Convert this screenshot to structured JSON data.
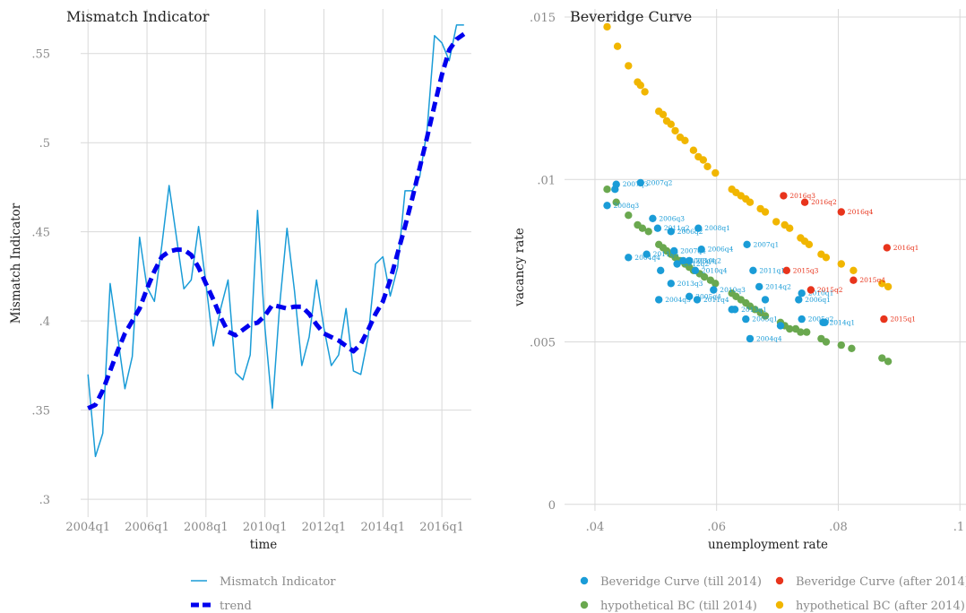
{
  "chart_data": [
    {
      "type": "line",
      "title": "Mismatch Indicator",
      "xlabel": "time",
      "ylabel": "Mismatch Indicator",
      "xlim": [
        2004.0,
        2017.25
      ],
      "ylim": [
        0.29,
        0.575
      ],
      "x_ticks": [
        {
          "value": 2004.25,
          "label": "2004q1"
        },
        {
          "value": 2006.25,
          "label": "2006q1"
        },
        {
          "value": 2008.25,
          "label": "2008q1"
        },
        {
          "value": 2010.25,
          "label": "2010q1"
        },
        {
          "value": 2012.25,
          "label": "2012q1"
        },
        {
          "value": 2014.25,
          "label": "2014q1"
        },
        {
          "value": 2016.25,
          "label": "2016q1"
        }
      ],
      "y_ticks": [
        {
          "value": 0.3,
          "label": ".3"
        },
        {
          "value": 0.35,
          "label": ".35"
        },
        {
          "value": 0.4,
          "label": ".4"
        },
        {
          "value": 0.45,
          "label": ".45"
        },
        {
          "value": 0.5,
          "label": ".5"
        },
        {
          "value": 0.55,
          "label": ".55"
        }
      ],
      "grid": true,
      "legend_position": "bottom",
      "x": [
        2004.25,
        2004.5,
        2004.75,
        2005.0,
        2005.25,
        2005.5,
        2005.75,
        2006.0,
        2006.25,
        2006.5,
        2006.75,
        2007.0,
        2007.25,
        2007.5,
        2007.75,
        2008.0,
        2008.25,
        2008.5,
        2008.75,
        2009.0,
        2009.25,
        2009.5,
        2009.75,
        2010.0,
        2010.25,
        2010.5,
        2010.75,
        2011.0,
        2011.25,
        2011.5,
        2011.75,
        2012.0,
        2012.25,
        2012.5,
        2012.75,
        2013.0,
        2013.25,
        2013.5,
        2013.75,
        2014.0,
        2014.25,
        2014.5,
        2014.75,
        2015.0,
        2015.25,
        2015.5,
        2015.75,
        2016.0,
        2016.25,
        2016.5,
        2016.75,
        2017.0
      ],
      "series": [
        {
          "name": "Mismatch Indicator",
          "color": "#1a9cd7",
          "style": "solid",
          "values": [
            0.37,
            0.324,
            0.337,
            0.421,
            0.392,
            0.362,
            0.38,
            0.447,
            0.419,
            0.411,
            0.442,
            0.476,
            0.447,
            0.418,
            0.423,
            0.453,
            0.421,
            0.386,
            0.407,
            0.423,
            0.371,
            0.367,
            0.381,
            0.462,
            0.396,
            0.351,
            0.409,
            0.452,
            0.417,
            0.375,
            0.391,
            0.423,
            0.396,
            0.375,
            0.381,
            0.407,
            0.372,
            0.37,
            0.391,
            0.432,
            0.436,
            0.414,
            0.43,
            0.473,
            0.473,
            0.481,
            0.507,
            0.56,
            0.556,
            0.546,
            0.566,
            0.566
          ]
        },
        {
          "name": "trend",
          "color": "#0000ee",
          "style": "dashed",
          "values": [
            0.351,
            0.353,
            0.361,
            0.372,
            0.383,
            0.393,
            0.4,
            0.407,
            0.418,
            0.428,
            0.436,
            0.439,
            0.44,
            0.44,
            0.437,
            0.43,
            0.421,
            0.412,
            0.402,
            0.394,
            0.392,
            0.395,
            0.398,
            0.399,
            0.403,
            0.409,
            0.408,
            0.407,
            0.408,
            0.408,
            0.404,
            0.398,
            0.393,
            0.391,
            0.389,
            0.386,
            0.383,
            0.387,
            0.395,
            0.404,
            0.411,
            0.423,
            0.438,
            0.453,
            0.469,
            0.486,
            0.503,
            0.521,
            0.538,
            0.552,
            0.558,
            0.561
          ]
        }
      ]
    },
    {
      "type": "scatter",
      "title": "Beveridge Curve",
      "xlabel": "unemployment rate",
      "ylabel": "vacancy rate",
      "xlim": [
        0.035,
        0.101
      ],
      "ylim": [
        -0.0002,
        0.01525
      ],
      "x_ticks": [
        {
          "value": 0.04,
          "label": ".04"
        },
        {
          "value": 0.06,
          "label": ".06"
        },
        {
          "value": 0.08,
          "label": ".08"
        },
        {
          "value": 0.1,
          "label": ".1"
        }
      ],
      "y_ticks": [
        {
          "value": 0,
          "label": "0"
        },
        {
          "value": 0.005,
          "label": ".005"
        },
        {
          "value": 0.01,
          "label": ".01"
        },
        {
          "value": 0.015,
          "label": ".015"
        }
      ],
      "grid": true,
      "legend_position": "bottom",
      "series": [
        {
          "name": "Beveridge Curve (till 2014)",
          "color": "#1a9cd7",
          "points": [
            {
              "x": 0.0435,
              "y": 0.00985,
              "label": "2007q3"
            },
            {
              "x": 0.0475,
              "y": 0.0099,
              "label": "2007q2"
            },
            {
              "x": 0.0433,
              "y": 0.0097,
              "label": ""
            },
            {
              "x": 0.042,
              "y": 0.0092,
              "label": "2008q3"
            },
            {
              "x": 0.0495,
              "y": 0.0088,
              "label": "2006q3"
            },
            {
              "x": 0.0503,
              "y": 0.0085,
              "label": "2011q2"
            },
            {
              "x": 0.0525,
              "y": 0.0084,
              "label": "2006q2"
            },
            {
              "x": 0.057,
              "y": 0.0085,
              "label": "2008q1"
            },
            {
              "x": 0.065,
              "y": 0.008,
              "label": "2007q1"
            },
            {
              "x": 0.053,
              "y": 0.0078,
              "label": "2007q4"
            },
            {
              "x": 0.0575,
              "y": 0.00785,
              "label": "2006q4"
            },
            {
              "x": 0.0485,
              "y": 0.0077,
              "label": "2011q3"
            },
            {
              "x": 0.0455,
              "y": 0.0076,
              "label": "2004q4"
            },
            {
              "x": 0.0555,
              "y": 0.0075,
              "label": "2010q2"
            },
            {
              "x": 0.0545,
              "y": 0.0075,
              "label": "2008q4"
            },
            {
              "x": 0.0535,
              "y": 0.0074,
              "label": "2012q2"
            },
            {
              "x": 0.0565,
              "y": 0.0072,
              "label": "2010q4"
            },
            {
              "x": 0.066,
              "y": 0.0072,
              "label": "2011q1"
            },
            {
              "x": 0.0508,
              "y": 0.0072,
              "label": ""
            },
            {
              "x": 0.0525,
              "y": 0.0068,
              "label": "2013q3"
            },
            {
              "x": 0.0595,
              "y": 0.0066,
              "label": "2010q3"
            },
            {
              "x": 0.067,
              "y": 0.0067,
              "label": "2014q2"
            },
            {
              "x": 0.074,
              "y": 0.0065,
              "label": "2010q1"
            },
            {
              "x": 0.0505,
              "y": 0.0063,
              "label": "2004q3"
            },
            {
              "x": 0.0555,
              "y": 0.0064,
              "label": "2005q4"
            },
            {
              "x": 0.0568,
              "y": 0.0063,
              "label": "2011q4"
            },
            {
              "x": 0.063,
              "y": 0.006,
              "label": "2013q1"
            },
            {
              "x": 0.0625,
              "y": 0.006,
              "label": ""
            },
            {
              "x": 0.068,
              "y": 0.0063,
              "label": ""
            },
            {
              "x": 0.0735,
              "y": 0.0063,
              "label": "2006q1"
            },
            {
              "x": 0.0648,
              "y": 0.0057,
              "label": "2005q1"
            },
            {
              "x": 0.074,
              "y": 0.0057,
              "label": "2005q2"
            },
            {
              "x": 0.0775,
              "y": 0.0056,
              "label": "2014q1"
            },
            {
              "x": 0.0778,
              "y": 0.0056,
              "label": ""
            },
            {
              "x": 0.0705,
              "y": 0.0055,
              "label": ""
            },
            {
              "x": 0.0655,
              "y": 0.0051,
              "label": "2004q4"
            }
          ]
        },
        {
          "name": "Beveridge Curve (after 2014)",
          "color": "#e8341c",
          "points": [
            {
              "x": 0.071,
              "y": 0.0095,
              "label": "2016q3"
            },
            {
              "x": 0.0745,
              "y": 0.0093,
              "label": "2016q2"
            },
            {
              "x": 0.0805,
              "y": 0.009,
              "label": "2016q4"
            },
            {
              "x": 0.088,
              "y": 0.0079,
              "label": "2016q1"
            },
            {
              "x": 0.0715,
              "y": 0.0072,
              "label": "2015q3"
            },
            {
              "x": 0.0825,
              "y": 0.0069,
              "label": "2015q4"
            },
            {
              "x": 0.0755,
              "y": 0.0066,
              "label": "2015q2"
            },
            {
              "x": 0.0875,
              "y": 0.0057,
              "label": "2015q1"
            }
          ]
        },
        {
          "name": "hypothetical BC (till 2014)",
          "color": "#6aa84f",
          "points": [
            {
              "x": 0.042,
              "y": 0.0097
            },
            {
              "x": 0.0435,
              "y": 0.0093
            },
            {
              "x": 0.0455,
              "y": 0.0089
            },
            {
              "x": 0.047,
              "y": 0.0086
            },
            {
              "x": 0.0478,
              "y": 0.0085
            },
            {
              "x": 0.0488,
              "y": 0.0084
            },
            {
              "x": 0.0505,
              "y": 0.008
            },
            {
              "x": 0.0512,
              "y": 0.0079
            },
            {
              "x": 0.0518,
              "y": 0.0078
            },
            {
              "x": 0.0525,
              "y": 0.0077
            },
            {
              "x": 0.0532,
              "y": 0.0076
            },
            {
              "x": 0.054,
              "y": 0.0075
            },
            {
              "x": 0.0548,
              "y": 0.0074
            },
            {
              "x": 0.0555,
              "y": 0.0073
            },
            {
              "x": 0.0562,
              "y": 0.0072
            },
            {
              "x": 0.0572,
              "y": 0.0071
            },
            {
              "x": 0.058,
              "y": 0.007
            },
            {
              "x": 0.059,
              "y": 0.0069
            },
            {
              "x": 0.0598,
              "y": 0.0068
            },
            {
              "x": 0.0625,
              "y": 0.0065
            },
            {
              "x": 0.0632,
              "y": 0.0064
            },
            {
              "x": 0.064,
              "y": 0.0063
            },
            {
              "x": 0.0648,
              "y": 0.0062
            },
            {
              "x": 0.0655,
              "y": 0.0061
            },
            {
              "x": 0.0663,
              "y": 0.006
            },
            {
              "x": 0.0672,
              "y": 0.0059
            },
            {
              "x": 0.068,
              "y": 0.0058
            },
            {
              "x": 0.0705,
              "y": 0.0056
            },
            {
              "x": 0.0712,
              "y": 0.0055
            },
            {
              "x": 0.072,
              "y": 0.0054
            },
            {
              "x": 0.073,
              "y": 0.0054
            },
            {
              "x": 0.0738,
              "y": 0.0053
            },
            {
              "x": 0.0748,
              "y": 0.0053
            },
            {
              "x": 0.0772,
              "y": 0.0051
            },
            {
              "x": 0.078,
              "y": 0.005
            },
            {
              "x": 0.0805,
              "y": 0.0049
            },
            {
              "x": 0.0822,
              "y": 0.0048
            },
            {
              "x": 0.0872,
              "y": 0.0045
            },
            {
              "x": 0.0882,
              "y": 0.0044
            }
          ]
        },
        {
          "name": "hypothetical BC (after 2014)",
          "color": "#f1b600",
          "points": [
            {
              "x": 0.042,
              "y": 0.0147
            },
            {
              "x": 0.0437,
              "y": 0.0141
            },
            {
              "x": 0.0455,
              "y": 0.0135
            },
            {
              "x": 0.047,
              "y": 0.013
            },
            {
              "x": 0.0475,
              "y": 0.0129
            },
            {
              "x": 0.0482,
              "y": 0.0127
            },
            {
              "x": 0.0505,
              "y": 0.0121
            },
            {
              "x": 0.0512,
              "y": 0.012
            },
            {
              "x": 0.0518,
              "y": 0.0118
            },
            {
              "x": 0.0525,
              "y": 0.0117
            },
            {
              "x": 0.0532,
              "y": 0.0115
            },
            {
              "x": 0.054,
              "y": 0.0113
            },
            {
              "x": 0.0548,
              "y": 0.0112
            },
            {
              "x": 0.0562,
              "y": 0.0109
            },
            {
              "x": 0.057,
              "y": 0.0107
            },
            {
              "x": 0.0578,
              "y": 0.0106
            },
            {
              "x": 0.0585,
              "y": 0.0104
            },
            {
              "x": 0.0598,
              "y": 0.0102
            },
            {
              "x": 0.0625,
              "y": 0.0097
            },
            {
              "x": 0.0632,
              "y": 0.0096
            },
            {
              "x": 0.064,
              "y": 0.0095
            },
            {
              "x": 0.0648,
              "y": 0.0094
            },
            {
              "x": 0.0655,
              "y": 0.0093
            },
            {
              "x": 0.0672,
              "y": 0.0091
            },
            {
              "x": 0.068,
              "y": 0.009
            },
            {
              "x": 0.0698,
              "y": 0.0087
            },
            {
              "x": 0.0712,
              "y": 0.0086
            },
            {
              "x": 0.072,
              "y": 0.0085
            },
            {
              "x": 0.0738,
              "y": 0.0082
            },
            {
              "x": 0.0745,
              "y": 0.0081
            },
            {
              "x": 0.0752,
              "y": 0.008
            },
            {
              "x": 0.0772,
              "y": 0.0077
            },
            {
              "x": 0.078,
              "y": 0.0076
            },
            {
              "x": 0.0805,
              "y": 0.0074
            },
            {
              "x": 0.0825,
              "y": 0.0072
            },
            {
              "x": 0.0872,
              "y": 0.0068
            },
            {
              "x": 0.0882,
              "y": 0.0067
            }
          ]
        }
      ]
    }
  ]
}
